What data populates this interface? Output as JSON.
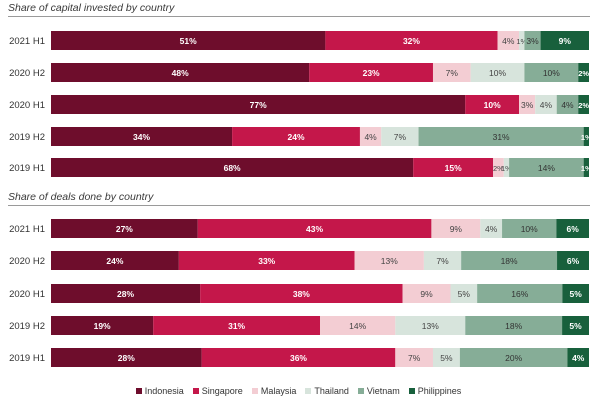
{
  "colors": {
    "Indonesia": "#6e0d2c",
    "Singapore": "#c4174a",
    "Malaysia": "#f3cdd3",
    "Thailand": "#d7e4dc",
    "Vietnam": "#86ad97",
    "Philippines": "#18603c"
  },
  "label_colors": {
    "Indonesia": "#ffffff",
    "Singapore": "#ffffff",
    "Malaysia": "#444444",
    "Thailand": "#444444",
    "Vietnam": "#333333",
    "Philippines": "#ffffff"
  },
  "legend": [
    "Indonesia",
    "Singapore",
    "Malaysia",
    "Thailand",
    "Vietnam",
    "Philippines"
  ],
  "chart_data": [
    {
      "type": "bar",
      "stacked": true,
      "orientation": "horizontal",
      "title": "Share of capital invested by country",
      "categories": [
        "2021 H1",
        "2020 H2",
        "2020 H1",
        "2019 H2",
        "2019 H1"
      ],
      "series": [
        {
          "name": "Indonesia",
          "values": [
            51,
            48,
            77,
            34,
            68
          ],
          "labels": [
            "51%",
            "48%",
            "77%",
            "34%",
            "68%"
          ]
        },
        {
          "name": "Singapore",
          "values": [
            32,
            23,
            10,
            24,
            15
          ],
          "labels": [
            "32%",
            "23%",
            "10%",
            "24%",
            "15%"
          ]
        },
        {
          "name": "Malaysia",
          "values": [
            4,
            7,
            3,
            4,
            2
          ],
          "labels": [
            "4%",
            "7%",
            "3%",
            "4%",
            "2%"
          ]
        },
        {
          "name": "Thailand",
          "values": [
            1,
            10,
            4,
            7,
            1
          ],
          "labels": [
            "1%",
            "10%",
            "4%",
            "7%",
            "1%"
          ]
        },
        {
          "name": "Vietnam",
          "values": [
            3,
            10,
            4,
            31,
            14
          ],
          "labels": [
            "3%",
            "10%",
            "4%",
            "31%",
            "14%"
          ]
        },
        {
          "name": "Philippines",
          "values": [
            9,
            2,
            2,
            1,
            1
          ],
          "labels": [
            "9%",
            "2%",
            "2%",
            "1%",
            "1%"
          ]
        }
      ],
      "legend": "bottom"
    },
    {
      "type": "bar",
      "stacked": true,
      "orientation": "horizontal",
      "title": "Share of deals done by country",
      "categories": [
        "2021 H1",
        "2020 H2",
        "2020 H1",
        "2019 H2",
        "2019 H1"
      ],
      "series": [
        {
          "name": "Indonesia",
          "values": [
            27,
            24,
            28,
            19,
            28
          ],
          "labels": [
            "27%",
            "24%",
            "28%",
            "19%",
            "28%"
          ]
        },
        {
          "name": "Singapore",
          "values": [
            43,
            33,
            38,
            31,
            36
          ],
          "labels": [
            "43%",
            "33%",
            "38%",
            "31%",
            "36%"
          ]
        },
        {
          "name": "Malaysia",
          "values": [
            9,
            13,
            9,
            14,
            7
          ],
          "labels": [
            "9%",
            "13%",
            "9%",
            "14%",
            "7%"
          ]
        },
        {
          "name": "Thailand",
          "values": [
            4,
            7,
            5,
            13,
            5
          ],
          "labels": [
            "4%",
            "7%",
            "5%",
            "13%",
            "5%"
          ]
        },
        {
          "name": "Vietnam",
          "values": [
            10,
            18,
            16,
            18,
            20
          ],
          "labels": [
            "10%",
            "18%",
            "16%",
            "18%",
            "20%"
          ]
        },
        {
          "name": "Philippines",
          "values": [
            6,
            6,
            5,
            5,
            4
          ],
          "labels": [
            "6%",
            "6%",
            "5%",
            "5%",
            "4%"
          ]
        }
      ],
      "legend": "bottom"
    }
  ]
}
